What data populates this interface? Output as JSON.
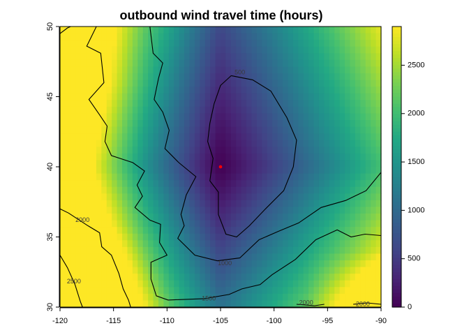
{
  "chart_data": {
    "type": "heatmap",
    "title": "outbound wind travel time (hours)",
    "xlabel": "",
    "ylabel": "",
    "xlim": [
      -120,
      -90
    ],
    "ylim": [
      30,
      50
    ],
    "x_ticks": [
      -120,
      -115,
      -110,
      -105,
      -100,
      -95,
      -90
    ],
    "y_ticks": [
      30,
      35,
      40,
      45,
      50
    ],
    "colorscale": {
      "name": "viridis",
      "range": [
        0,
        2900
      ],
      "ticks": [
        0,
        500,
        1000,
        1500,
        2000,
        2500
      ]
    },
    "origin_point": {
      "x": -105,
      "y": 40,
      "color": "#ff0000"
    },
    "contour_levels": [
      500,
      1000,
      1500,
      2000,
      2500
    ],
    "contour_labels": [
      {
        "text": "500",
        "x": -103.2,
        "y": 46.7
      },
      {
        "text": "1000",
        "x": -104.6,
        "y": 33.1
      },
      {
        "text": "1500",
        "x": -106.1,
        "y": 30.6
      },
      {
        "text": "2000",
        "x": -117.9,
        "y": 36.2
      },
      {
        "text": "2500",
        "x": -118.7,
        "y": 31.8
      },
      {
        "text": "2000",
        "x": -97.0,
        "y": 30.3
      },
      {
        "text": "2000",
        "x": -91.7,
        "y": 30.2
      }
    ],
    "grid": false,
    "legend": "colorbar-right"
  }
}
